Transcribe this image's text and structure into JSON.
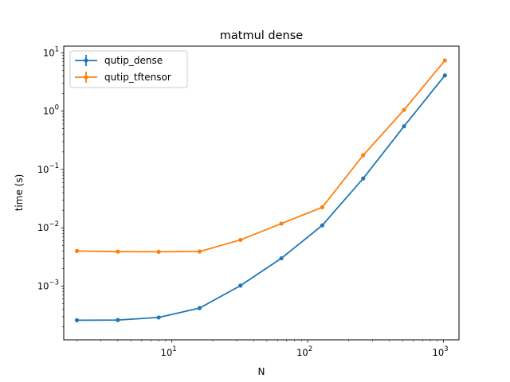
{
  "chart_data": {
    "type": "line",
    "title": "matmul dense",
    "xlabel": "N",
    "ylabel": "time (s)",
    "xscale": "log",
    "yscale": "log",
    "xlim": [
      1.6,
      1300
    ],
    "ylim": [
      0.00012,
      13
    ],
    "x_ticks": [
      {
        "value": 10,
        "label": "10",
        "exp": "1"
      },
      {
        "value": 100,
        "label": "10",
        "exp": "2"
      },
      {
        "value": 1000,
        "label": "10",
        "exp": "3"
      }
    ],
    "y_ticks": [
      {
        "value": 0.001,
        "label": "10",
        "exp": "−3"
      },
      {
        "value": 0.01,
        "label": "10",
        "exp": "−2"
      },
      {
        "value": 0.1,
        "label": "10",
        "exp": "−1"
      },
      {
        "value": 1,
        "label": "10",
        "exp": "0"
      },
      {
        "value": 10,
        "label": "10",
        "exp": "1"
      }
    ],
    "grid": false,
    "legend_position": "top-left",
    "x": [
      2,
      4,
      8,
      16,
      32,
      64,
      128,
      256,
      512,
      1024
    ],
    "series": [
      {
        "name": "qutip_dense",
        "color": "#1f77b4",
        "values": [
          0.00026,
          0.000262,
          0.00029,
          0.00042,
          0.00102,
          0.003,
          0.011,
          0.07,
          0.55,
          4.1
        ]
      },
      {
        "name": "qutip_tftensor",
        "color": "#ff7f0e",
        "values": [
          0.004,
          0.0039,
          0.00388,
          0.00392,
          0.0062,
          0.0118,
          0.0225,
          0.175,
          1.05,
          7.4
        ]
      }
    ]
  }
}
